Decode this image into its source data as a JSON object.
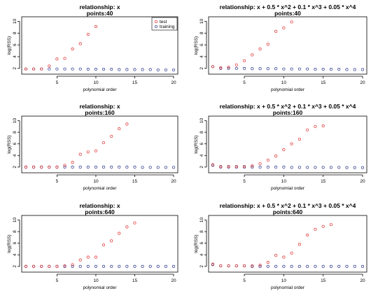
{
  "colors": {
    "test": "#e03030",
    "training": "#2a3a8c",
    "axis": "#000000"
  },
  "chart_data": [
    {
      "type": "scatter",
      "title": "relationship: x",
      "subtitle": "points:40",
      "xlabel": "polynomial order",
      "ylabel": "log(RSS)",
      "xlim": [
        1,
        20
      ],
      "ylim": [
        1.5,
        10.3
      ],
      "xticks": [
        5,
        10,
        15,
        20
      ],
      "yticks": [
        2,
        4,
        6,
        8,
        10
      ],
      "legend": {
        "position": "top-right",
        "entries": [
          "test",
          "training"
        ]
      },
      "series": [
        {
          "name": "test",
          "x": [
            1,
            2,
            3,
            4,
            5,
            6,
            7,
            8,
            9,
            10
          ],
          "y": [
            1.9,
            1.9,
            1.9,
            2.4,
            3.6,
            3.7,
            5.3,
            6.2,
            7.8,
            9.1
          ]
        },
        {
          "name": "training",
          "x": [
            1,
            2,
            3,
            4,
            5,
            6,
            7,
            8,
            9,
            10,
            11,
            12,
            13,
            14,
            15,
            16,
            17,
            18,
            19,
            20
          ],
          "y": [
            1.9,
            1.9,
            1.9,
            1.9,
            1.9,
            1.9,
            1.9,
            1.9,
            1.85,
            1.85,
            1.85,
            1.85,
            1.8,
            1.8,
            1.8,
            1.8,
            1.8,
            1.75,
            1.75,
            1.75
          ]
        }
      ]
    },
    {
      "type": "scatter",
      "title": "relationship: x + 0.5 * x^2 + 0.1 * x^3 + 0.05 * x^4",
      "subtitle": "points:40",
      "xlabel": "polynomial order",
      "ylabel": "log(RSS)",
      "xlim": [
        1,
        20
      ],
      "ylim": [
        1.5,
        10.3
      ],
      "xticks": [
        5,
        10,
        15,
        20
      ],
      "yticks": [
        2,
        4,
        6,
        8,
        10
      ],
      "legend": null,
      "series": [
        {
          "name": "test",
          "x": [
            1,
            2,
            3,
            4,
            5,
            6,
            7,
            8,
            9,
            10,
            11
          ],
          "y": [
            2.3,
            2.1,
            2.2,
            2.6,
            3.3,
            4.3,
            5.3,
            6.1,
            8.3,
            8.9,
            9.9
          ]
        },
        {
          "name": "training",
          "x": [
            1,
            2,
            3,
            4,
            5,
            6,
            7,
            8,
            9,
            10,
            11,
            12,
            13,
            14,
            15,
            16,
            17,
            18,
            19,
            20
          ],
          "y": [
            2.3,
            2.0,
            2.0,
            2.0,
            2.0,
            1.95,
            1.95,
            1.95,
            1.95,
            1.9,
            1.9,
            1.9,
            1.9,
            1.85,
            1.85,
            1.85,
            1.85,
            1.8,
            1.8,
            1.8
          ]
        }
      ]
    },
    {
      "type": "scatter",
      "title": "relationship: x",
      "subtitle": "points:160",
      "xlabel": "polynomial order",
      "ylabel": "log(RSS)",
      "xlim": [
        1,
        20
      ],
      "ylim": [
        1.5,
        10.3
      ],
      "xticks": [
        5,
        10,
        15,
        20
      ],
      "yticks": [
        2,
        4,
        6,
        8,
        10
      ],
      "legend": null,
      "series": [
        {
          "name": "test",
          "x": [
            1,
            2,
            3,
            4,
            5,
            6,
            7,
            8,
            9,
            10,
            11,
            12,
            13,
            14
          ],
          "y": [
            2.0,
            2.0,
            2.0,
            2.0,
            2.0,
            2.3,
            2.8,
            4.2,
            4.6,
            4.8,
            6.2,
            7.3,
            8.6,
            9.4
          ]
        },
        {
          "name": "training",
          "x": [
            1,
            2,
            3,
            4,
            5,
            6,
            7,
            8,
            9,
            10,
            11,
            12,
            13,
            14,
            15,
            16,
            17,
            18,
            19,
            20
          ],
          "y": [
            2.0,
            2.0,
            2.0,
            2.0,
            2.0,
            2.0,
            2.0,
            2.0,
            2.0,
            2.0,
            2.0,
            2.0,
            2.0,
            2.0,
            2.0,
            1.95,
            1.95,
            1.95,
            1.95,
            1.95
          ]
        }
      ]
    },
    {
      "type": "scatter",
      "title": "relationship: x + 0.5 * x^2 + 0.1 * x^3 + 0.05 * x^4",
      "subtitle": "points:160",
      "xlabel": "polynomial order",
      "ylabel": "log(RSS)",
      "xlim": [
        1,
        20
      ],
      "ylim": [
        1.5,
        10.3
      ],
      "xticks": [
        5,
        10,
        15,
        20
      ],
      "yticks": [
        2,
        4,
        6,
        8,
        10
      ],
      "legend": null,
      "series": [
        {
          "name": "test",
          "x": [
            1,
            2,
            3,
            4,
            5,
            6,
            7,
            8,
            9,
            10,
            11,
            12,
            13,
            14,
            15
          ],
          "y": [
            2.4,
            2.1,
            2.1,
            2.1,
            2.1,
            2.2,
            2.6,
            3.2,
            3.9,
            5.0,
            6.0,
            6.8,
            8.4,
            9.0,
            9.1
          ]
        },
        {
          "name": "training",
          "x": [
            1,
            2,
            3,
            4,
            5,
            6,
            7,
            8,
            9,
            10,
            11,
            12,
            13,
            14,
            15,
            16,
            17,
            18,
            19,
            20
          ],
          "y": [
            2.3,
            2.0,
            2.0,
            2.0,
            2.0,
            2.0,
            2.0,
            2.0,
            2.0,
            2.0,
            1.95,
            1.95,
            1.95,
            1.95,
            1.95,
            1.95,
            1.95,
            1.9,
            1.9,
            1.9
          ]
        }
      ]
    },
    {
      "type": "scatter",
      "title": "relationship: x",
      "subtitle": "points:640",
      "xlabel": "polynomial order",
      "ylabel": "log(RSS)",
      "xlim": [
        1,
        20
      ],
      "ylim": [
        1.5,
        10.3
      ],
      "xticks": [
        5,
        10,
        15,
        20
      ],
      "yticks": [
        2,
        4,
        6,
        8,
        10
      ],
      "legend": null,
      "series": [
        {
          "name": "test",
          "x": [
            1,
            2,
            3,
            4,
            5,
            6,
            7,
            8,
            9,
            10,
            11,
            12,
            13,
            14,
            15
          ],
          "y": [
            2.0,
            2.0,
            2.0,
            2.0,
            2.0,
            2.1,
            2.3,
            3.1,
            3.6,
            3.6,
            5.7,
            6.4,
            7.7,
            8.8,
            9.5
          ]
        },
        {
          "name": "training",
          "x": [
            1,
            2,
            3,
            4,
            5,
            6,
            7,
            8,
            9,
            10,
            11,
            12,
            13,
            14,
            15,
            16,
            17,
            18,
            19,
            20
          ],
          "y": [
            2.0,
            2.0,
            2.0,
            2.0,
            2.0,
            2.0,
            2.0,
            2.0,
            2.0,
            2.0,
            2.0,
            2.0,
            2.0,
            2.0,
            2.0,
            2.0,
            2.0,
            2.0,
            2.0,
            2.0
          ]
        }
      ]
    },
    {
      "type": "scatter",
      "title": "relationship: x + 0.5 * x^2 + 0.1 * x^3 + 0.05 * x^4",
      "subtitle": "points:640",
      "xlabel": "polynomial order",
      "ylabel": "log(RSS)",
      "xlim": [
        1,
        20
      ],
      "ylim": [
        1.5,
        10.3
      ],
      "xticks": [
        5,
        10,
        15,
        20
      ],
      "yticks": [
        2,
        4,
        6,
        8,
        10
      ],
      "legend": null,
      "series": [
        {
          "name": "test",
          "x": [
            1,
            2,
            3,
            4,
            5,
            6,
            7,
            8,
            9,
            10,
            11,
            12,
            13,
            14,
            15,
            16
          ],
          "y": [
            2.4,
            2.1,
            2.1,
            2.1,
            2.1,
            2.1,
            2.2,
            2.7,
            3.9,
            3.6,
            4.3,
            5.8,
            7.4,
            8.4,
            8.9,
            9.2
          ]
        },
        {
          "name": "training",
          "x": [
            1,
            2,
            3,
            4,
            5,
            6,
            7,
            8,
            9,
            10,
            11,
            12,
            13,
            14,
            15,
            16,
            17,
            18,
            19,
            20
          ],
          "y": [
            2.3,
            2.1,
            2.1,
            2.1,
            2.1,
            2.0,
            2.0,
            2.0,
            2.0,
            2.0,
            2.0,
            2.0,
            2.0,
            2.0,
            2.0,
            2.0,
            2.0,
            2.0,
            2.0,
            2.0
          ]
        }
      ]
    }
  ]
}
